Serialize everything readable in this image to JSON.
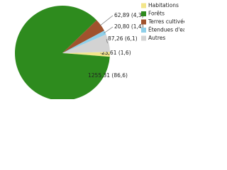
{
  "chart_data": {
    "type": "pie",
    "categories": [
      "Habitations",
      "Forêts",
      "Terres cultivées",
      "Étendues d'eau",
      "Autres"
    ],
    "values": [
      23.61,
      1255.31,
      62.89,
      20.8,
      87.26
    ],
    "value_labels": [
      "23,61 (1,6)",
      "1255,31 (86,6)",
      "62,89 (4,3)",
      "20,80 (1,4)",
      "87,26 (6,1)"
    ],
    "colors": [
      "#f3e68a",
      "#2e8b1e",
      "#a0522d",
      "#8fd0ea",
      "#d3d3d3"
    ],
    "legend": "right"
  }
}
